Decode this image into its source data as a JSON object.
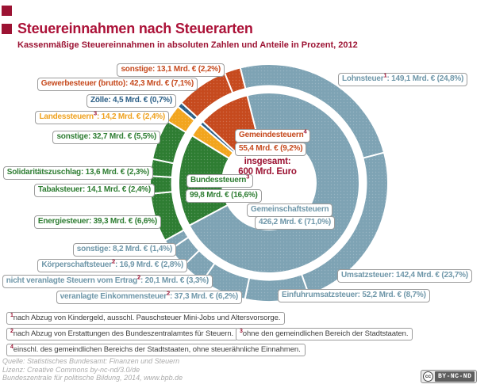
{
  "header": {
    "title": "Steuereinnahmen nach Steuerarten",
    "subtitle": "Kassenmäßige Steuereinnahmen in absoluten Zahlen und Anteile in Prozent, 2012"
  },
  "chart_data": {
    "type": "pie",
    "variant": "double-donut",
    "title": "Steuereinnahmen nach Steuerarten",
    "subtitle": "Kassenmäßige Steuereinnahmen in absoluten Zahlen und Anteile in Prozent, 2012",
    "unit": "Mrd. €",
    "total_label": {
      "line1": "insgesamt:",
      "line2": "600 Mrd. Euro"
    },
    "total_value_mrd_eur": 600,
    "start_angle_deg": -14,
    "colors": {
      "gemeinschaftsteuern": "#7EA3B4",
      "bundessteuern": "#2E7D32",
      "landessteuern": "#F2A51E",
      "zoelle": "#2A5E86",
      "gemeindesteuern": "#C64A1E"
    },
    "rings": {
      "outer": {
        "segments": [
          {
            "label": "Lohnsteuer",
            "sup": "1",
            "text": ": 149,1 Mrd. € (24,8%)",
            "mrd": 149.1,
            "pct": 24.8,
            "group": "Gemeinschaftsteuern",
            "color": "#7EA3B4"
          },
          {
            "label": "Umsatzsteuer",
            "sup": "",
            "text": ": 142,4 Mrd. € (23,7%)",
            "mrd": 142.4,
            "pct": 23.7,
            "group": "Gemeinschaftsteuern",
            "color": "#7EA3B4"
          },
          {
            "label": "Einfuhrumsatzsteuer",
            "sup": "",
            "text": ": 52,2 Mrd. € (8,7%)",
            "mrd": 52.2,
            "pct": 8.7,
            "group": "Gemeinschaftsteuern",
            "color": "#7EA3B4"
          },
          {
            "label": "veranlagte Einkommensteuer",
            "sup": "2",
            "text": ": 37,3 Mrd. € (6,2%)",
            "mrd": 37.3,
            "pct": 6.2,
            "group": "Gemeinschaftsteuern",
            "color": "#7EA3B4"
          },
          {
            "label": "nicht veranlagte Steuern vom Ertrag",
            "sup": "2",
            "text": ": 20,1 Mrd. € (3,3%)",
            "mrd": 20.1,
            "pct": 3.3,
            "group": "Gemeinschaftsteuern",
            "color": "#7EA3B4"
          },
          {
            "label": "Körperschaftsteuer",
            "sup": "2",
            "text": ": 16,9 Mrd. € (2,8%)",
            "mrd": 16.9,
            "pct": 2.8,
            "group": "Gemeinschaftsteuern",
            "color": "#7EA3B4"
          },
          {
            "label": "sonstige",
            "sup": "",
            "text": ": 8,2 Mrd. € (1,4%)",
            "mrd": 8.2,
            "pct": 1.4,
            "group": "Gemeinschaftsteuern",
            "color": "#7EA3B4"
          },
          {
            "label": "Energiesteuer",
            "sup": "",
            "text": ": 39,3 Mrd. € (6,6%)",
            "mrd": 39.3,
            "pct": 6.6,
            "group": "Bundessteuern",
            "color": "#2E7D32"
          },
          {
            "label": "Tabaksteuer",
            "sup": "",
            "text": ": 14,1 Mrd. € (2,4%)",
            "mrd": 14.1,
            "pct": 2.4,
            "group": "Bundessteuern",
            "color": "#2E7D32"
          },
          {
            "label": "Solidaritätszuschlag",
            "sup": "",
            "text": ": 13,6 Mrd. € (2,3%)",
            "mrd": 13.6,
            "pct": 2.3,
            "group": "Bundessteuern",
            "color": "#2E7D32"
          },
          {
            "label": "sonstige",
            "sup": "",
            "text": ": 32,7 Mrd. € (5,5%)",
            "mrd": 32.7,
            "pct": 5.5,
            "group": "Bundessteuern",
            "color": "#2E7D32"
          },
          {
            "label": "Landessteuern",
            "sup": "3",
            "text": ": 14,2 Mrd. € (2,4%)",
            "mrd": 14.2,
            "pct": 2.4,
            "group": "Landessteuern",
            "color": "#F2A51E"
          },
          {
            "label": "Zölle",
            "sup": "",
            "text": ": 4,5 Mrd. € (0,7%)",
            "mrd": 4.5,
            "pct": 0.7,
            "group": "Zölle",
            "color": "#2A5E86"
          },
          {
            "label": "Gewerbesteuer (brutto)",
            "sup": "",
            "text": ": 42,3 Mrd. € (7,1%)",
            "mrd": 42.3,
            "pct": 7.1,
            "group": "Gemeindesteuern",
            "color": "#C64A1E"
          },
          {
            "label": "sonstige",
            "sup": "",
            "text": ": 13,1 Mrd. € (2,2%)",
            "mrd": 13.1,
            "pct": 2.2,
            "group": "Gemeindesteuern",
            "color": "#C64A1E"
          }
        ]
      },
      "inner": {
        "segments": [
          {
            "label": "Gemeinschaftsteuern",
            "sup": "",
            "text": "426,2 Mrd. € (71,0%)",
            "mrd": 426.2,
            "pct": 71.0,
            "color": "#7EA3B4"
          },
          {
            "label": "Bundessteuern",
            "sup": "3",
            "text": "99,8 Mrd. € (16,6%)",
            "mrd": 99.8,
            "pct": 16.6,
            "color": "#2E7D32"
          },
          {
            "label": "Landessteuern",
            "sup": "3",
            "text": "14,2 Mrd. € (2,4%)",
            "mrd": 14.2,
            "pct": 2.4,
            "color": "#F2A51E"
          },
          {
            "label": "Zölle",
            "sup": "",
            "text": "4,5 Mrd. € (0,7%)",
            "mrd": 4.5,
            "pct": 0.7,
            "color": "#2A5E86"
          },
          {
            "label": "Gemeindesteuern",
            "sup": "4",
            "text": "55,4 Mrd. € (9,2%)",
            "mrd": 55.4,
            "pct": 9.2,
            "color": "#C64A1E"
          }
        ]
      }
    }
  },
  "footnotes": [
    {
      "sup": "1",
      "text": "nach Abzug von Kindergeld, ausschl. Pauschsteuer Mini-Jobs und Altersvorsorge."
    },
    {
      "sup": "2",
      "text": "nach Abzug von Erstattungen des Bundeszentralamtes für Steuern."
    },
    {
      "sup": "3",
      "text": "ohne den gemeindlichen Bereich der Stadtstaaten."
    },
    {
      "sup": "4",
      "text": "einschl. des gemeindlichen Bereichs der Stadtstaaten, ohne steuerähnliche Einnahmen."
    }
  ],
  "footer": {
    "source_lines": [
      "Quelle: Statistisches Bundesamt: Finanzen und Steuern",
      "Lizenz: Creative Commons by-nc-nd/3.0/de",
      "Bundeszentrale für politische Bildung, 2014, www.bpb.de"
    ],
    "badge": {
      "cc": "cc",
      "license": "BY-NC-ND"
    }
  }
}
